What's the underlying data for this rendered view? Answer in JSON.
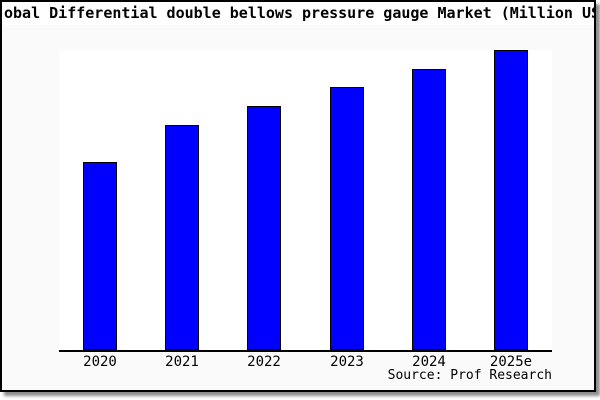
{
  "title": {
    "visible_text": "obal Differential double bellows pressure gauge Market (Million USD"
  },
  "source": {
    "text": "Source: Prof Research"
  },
  "colors": {
    "bar_fill": "#0000ff",
    "bar_border": "#000000",
    "frame_background": "#fafafa",
    "plot_background": "#ffffff",
    "title_background": "#ffffff",
    "axis": "#000000",
    "text": "#000000"
  },
  "chart_data": {
    "type": "bar",
    "categories": [
      "2020",
      "2021",
      "2022",
      "2023",
      "2024",
      "2025e"
    ],
    "values": [
      62.8,
      75.1,
      81.4,
      87.7,
      93.7,
      100
    ],
    "title": "obal Differential double bellows pressure gauge Market (Million USD",
    "xlabel": "",
    "ylabel": "",
    "ylim": [
      0,
      100
    ],
    "y_axis_visible": false,
    "grid": false,
    "legend": "none",
    "note": "No numeric y-axis shown; values are relative bar heights normalized to tallest bar = 100"
  }
}
